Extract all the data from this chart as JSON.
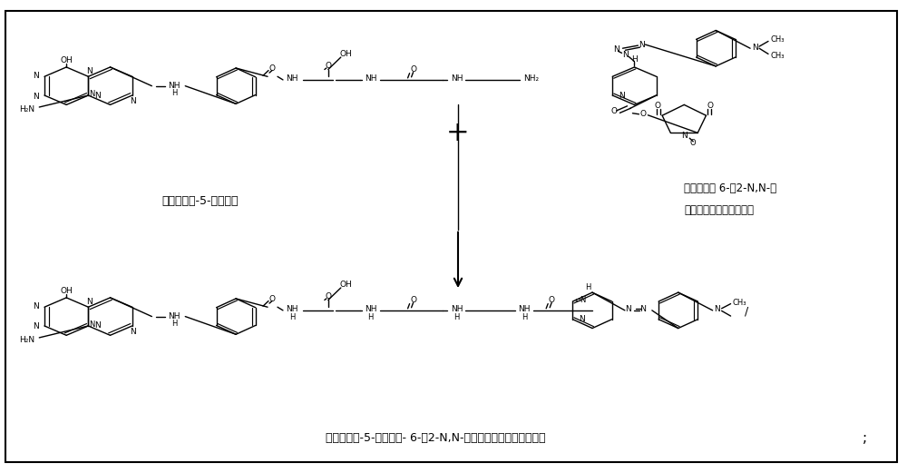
{
  "background_color": "#ffffff",
  "figsize": [
    10.0,
    5.21
  ],
  "dpi": 100,
  "label1": "蝶酰赖氨酸-5-氨基戊酸",
  "label2_line1": "琅珀酰亚胺 6-（2-N,N-二",
  "label2_line2": "甲基苯甲醉亚肼基）烟酸",
  "label3": "蝶酰赖氨酸-5-氨基戊酸- 6-（2-N,N-二甲基苯甲醉亚肼基）烟酸",
  "semicolon": ";"
}
